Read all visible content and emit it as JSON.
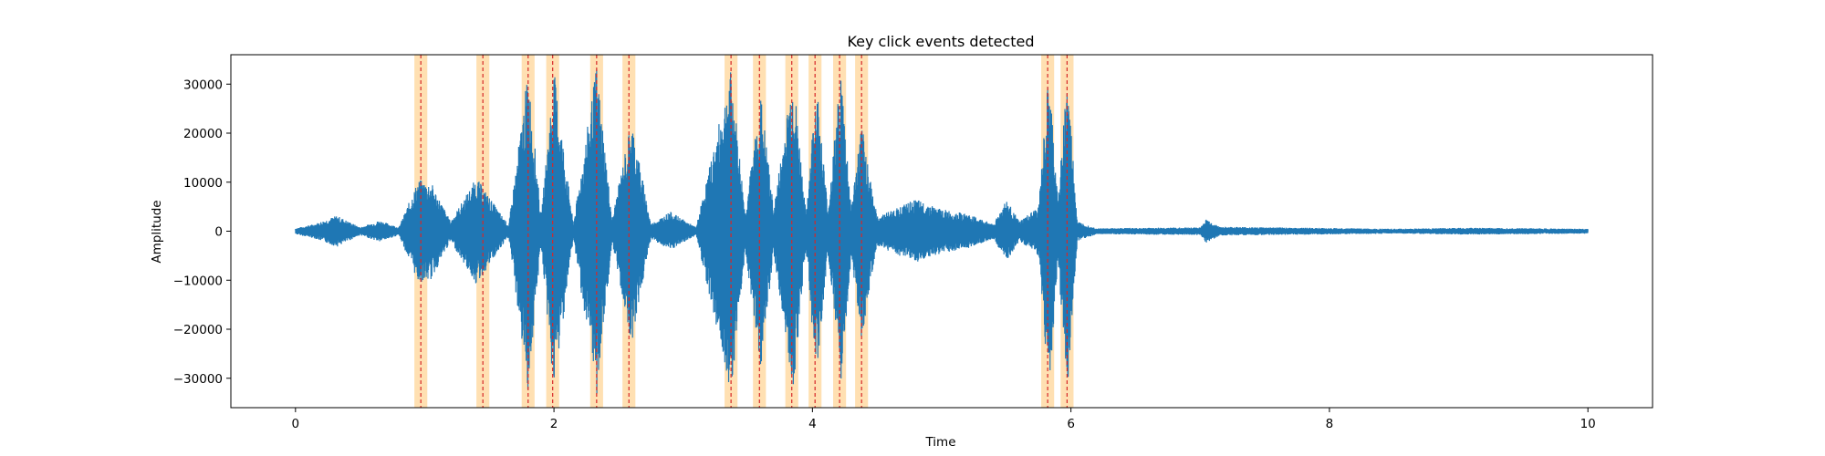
{
  "chart_data": {
    "type": "line",
    "title": "Key click events detected",
    "xlabel": "Time",
    "ylabel": "Amplitude",
    "xlim": [
      -0.5,
      10.5
    ],
    "ylim": [
      -36000,
      36000
    ],
    "xticks": [
      0,
      2,
      4,
      6,
      8,
      10
    ],
    "yticks": [
      -30000,
      -20000,
      -10000,
      0,
      10000,
      20000,
      30000
    ],
    "xtick_labels": [
      "0",
      "2",
      "4",
      "6",
      "8",
      "10"
    ],
    "ytick_labels": [
      "−30000",
      "−20000",
      "−10000",
      "0",
      "10000",
      "20000",
      "30000"
    ],
    "grid": false,
    "colors": {
      "signal": "#1f77b4",
      "event_line": "#d62728",
      "event_span": "#ffe0b2"
    },
    "signal_duration": 10,
    "envelope": [
      {
        "t": 0.0,
        "a": 600
      },
      {
        "t": 0.15,
        "a": 1500
      },
      {
        "t": 0.32,
        "a": 3200
      },
      {
        "t": 0.5,
        "a": 800
      },
      {
        "t": 0.65,
        "a": 2200
      },
      {
        "t": 0.8,
        "a": 800
      },
      {
        "t": 0.95,
        "a": 10500
      },
      {
        "t": 1.05,
        "a": 10000
      },
      {
        "t": 1.2,
        "a": 2000
      },
      {
        "t": 1.4,
        "a": 11000
      },
      {
        "t": 1.55,
        "a": 5000
      },
      {
        "t": 1.65,
        "a": 1200
      },
      {
        "t": 1.8,
        "a": 33000
      },
      {
        "t": 1.9,
        "a": 3000
      },
      {
        "t": 2.0,
        "a": 33000
      },
      {
        "t": 2.15,
        "a": 1500
      },
      {
        "t": 2.33,
        "a": 34000
      },
      {
        "t": 2.45,
        "a": 2500
      },
      {
        "t": 2.6,
        "a": 23000
      },
      {
        "t": 2.75,
        "a": 1500
      },
      {
        "t": 2.9,
        "a": 4000
      },
      {
        "t": 3.1,
        "a": 800
      },
      {
        "t": 3.37,
        "a": 33000
      },
      {
        "t": 3.48,
        "a": 4000
      },
      {
        "t": 3.6,
        "a": 28000
      },
      {
        "t": 3.7,
        "a": 4500
      },
      {
        "t": 3.85,
        "a": 33000
      },
      {
        "t": 3.95,
        "a": 3500
      },
      {
        "t": 4.03,
        "a": 31000
      },
      {
        "t": 4.12,
        "a": 4500
      },
      {
        "t": 4.22,
        "a": 33000
      },
      {
        "t": 4.3,
        "a": 5000
      },
      {
        "t": 4.38,
        "a": 22000
      },
      {
        "t": 4.5,
        "a": 3000
      },
      {
        "t": 4.8,
        "a": 6500
      },
      {
        "t": 5.0,
        "a": 4500
      },
      {
        "t": 5.2,
        "a": 3500
      },
      {
        "t": 5.4,
        "a": 1500
      },
      {
        "t": 5.5,
        "a": 6500
      },
      {
        "t": 5.6,
        "a": 2000
      },
      {
        "t": 5.75,
        "a": 5000
      },
      {
        "t": 5.83,
        "a": 33000
      },
      {
        "t": 5.9,
        "a": 6000
      },
      {
        "t": 5.97,
        "a": 33000
      },
      {
        "t": 6.05,
        "a": 2000
      },
      {
        "t": 6.2,
        "a": 600
      },
      {
        "t": 7.0,
        "a": 800
      },
      {
        "t": 7.05,
        "a": 2500
      },
      {
        "t": 7.15,
        "a": 900
      },
      {
        "t": 8.5,
        "a": 500
      },
      {
        "t": 9.1,
        "a": 700
      },
      {
        "t": 10.0,
        "a": 500
      }
    ],
    "events": [
      {
        "time": 0.97
      },
      {
        "time": 1.45
      },
      {
        "time": 1.8
      },
      {
        "time": 1.99
      },
      {
        "time": 2.33
      },
      {
        "time": 2.58
      },
      {
        "time": 3.37
      },
      {
        "time": 3.59
      },
      {
        "time": 3.84
      },
      {
        "time": 4.02
      },
      {
        "time": 4.21
      },
      {
        "time": 4.38
      },
      {
        "time": 5.82
      },
      {
        "time": 5.97
      }
    ],
    "event_window": 0.1
  }
}
